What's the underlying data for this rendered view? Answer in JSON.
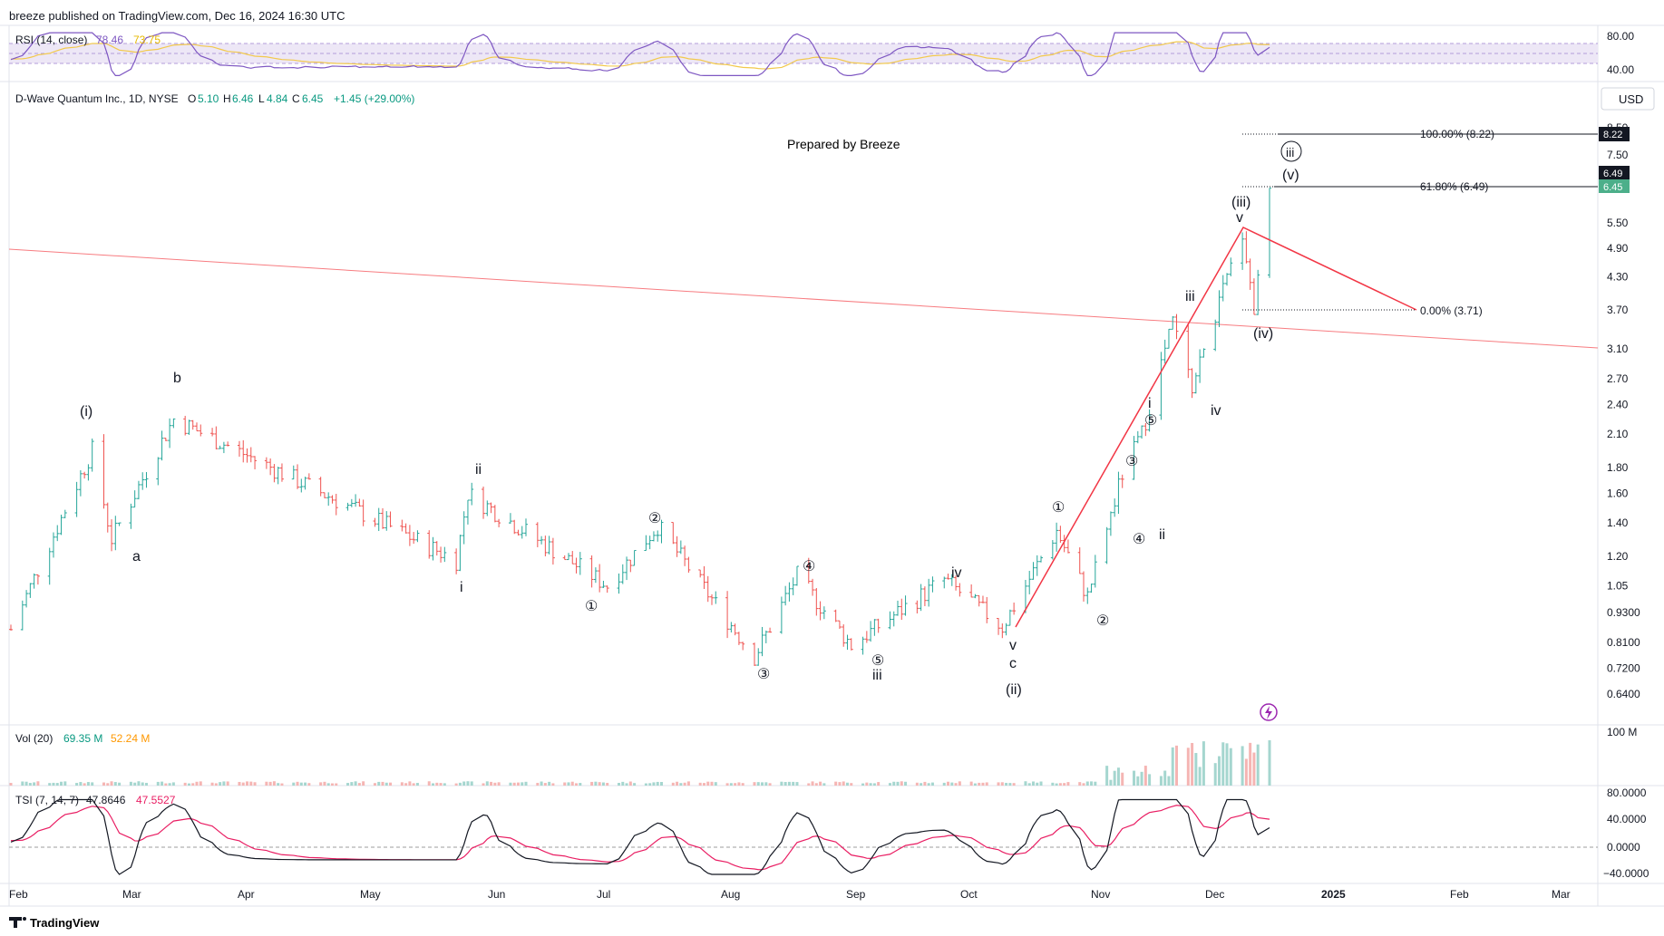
{
  "header": {
    "published": "breeze published on TradingView.com, Dec 16, 2024 16:30 UTC"
  },
  "rsi": {
    "label": "RSI (14, close)",
    "value1": "78.46",
    "value2": "73.75",
    "axis": [
      "80.00",
      "40.00"
    ],
    "color_line": "#7e57c2",
    "color_ma": "#f2c94c"
  },
  "main": {
    "symbol": "D-Wave Quantum Inc., 1D, NYSE",
    "o_label": "O",
    "o": "5.10",
    "h_label": "H",
    "h": "6.46",
    "l_label": "L",
    "l": "4.84",
    "c_label": "C",
    "c": "6.45",
    "change": "+1.45 (+29.00%)",
    "currency": "USD",
    "prepared": "Prepared by Breeze",
    "fib_100": "100.00% (8.22)",
    "fib_618": "61.80% (6.49)",
    "fib_0": "0.00% (3.71)",
    "badge_822": "8.22",
    "badge_649": "6.49",
    "badge_645": "6.45",
    "price_ticks": [
      "8.50",
      "7.50",
      "6.50",
      "5.50",
      "4.90",
      "4.30",
      "3.70",
      "3.10",
      "2.70",
      "2.40",
      "2.10",
      "1.80",
      "1.60",
      "1.40",
      "1.20",
      "1.05",
      "0.9300",
      "0.8100",
      "0.7200",
      "0.6400"
    ],
    "wave_labels": {
      "w_i_paren": "(i)",
      "w_b": "b",
      "w_a": "a",
      "w_ii_1": "ii",
      "w_i_1": "i",
      "w_c1_1": "①",
      "w_c2_1": "②",
      "w_c3_1": "③",
      "w_c4_1": "④",
      "w_c5_1": "⑤",
      "w_iii_1": "iii",
      "w_iv_1": "iv",
      "w_v_1": "v",
      "w_c_1": "c",
      "w_ii_paren": "(ii)",
      "w_c1_2": "①",
      "w_c2_2": "②",
      "w_c3_2": "③",
      "w_c4_2": "④",
      "w_c5_2": "⑤",
      "w_i_2": "i",
      "w_ii_2": "ii",
      "w_iii_2": "iii",
      "w_iv_2": "iv",
      "w_iii_paren": "(iii)",
      "w_v_2": "v",
      "w_iv_paren": "(iv)",
      "w_v_paren": "(v)",
      "w_iii_circle": "iii"
    }
  },
  "volume": {
    "label": "Vol (20)",
    "v1": "69.35 M",
    "v2": "52.24 M",
    "axis": "100 M"
  },
  "tsi": {
    "label": "TSI (7, 14, 7)",
    "v1": "47.8646",
    "v2": "47.5527",
    "axis": [
      "80.0000",
      "40.0000",
      "0.0000",
      "−40.0000"
    ]
  },
  "time_axis": [
    "Feb",
    "Mar",
    "Apr",
    "May",
    "Jun",
    "Jul",
    "Aug",
    "Sep",
    "Oct",
    "Nov",
    "Dec",
    "2025",
    "Feb",
    "Mar"
  ],
  "footer": {
    "brand": "TradingView"
  },
  "colors": {
    "up": "#26a69a",
    "down": "#ef5350",
    "trend": "#f23645",
    "tsi": "#131722",
    "tsi_signal": "#e91e63",
    "vol_ma": "#ff9800"
  },
  "chart_data": {
    "type": "candlestick",
    "title": "D-Wave Quantum Inc., 1D, NYSE",
    "x_range": [
      "2024-01-26",
      "2024-12-16"
    ],
    "y_scale": "log",
    "ylim": [
      0.6,
      9.0
    ],
    "key_points": [
      {
        "date": "2024-01-26",
        "close": 0.86
      },
      {
        "date": "2024-02-16",
        "close": 1.95
      },
      {
        "date": "2024-02-21",
        "close": 1.3
      },
      {
        "date": "2024-03-08",
        "close": 2.25
      },
      {
        "date": "2024-05-20",
        "close": 1.18
      },
      {
        "date": "2024-05-23",
        "close": 1.6
      },
      {
        "date": "2024-06-28",
        "close": 1.05
      },
      {
        "date": "2024-07-11",
        "close": 1.38
      },
      {
        "date": "2024-08-05",
        "close": 0.76
      },
      {
        "date": "2024-08-16",
        "close": 1.1
      },
      {
        "date": "2024-08-30",
        "close": 0.8
      },
      {
        "date": "2024-09-23",
        "close": 1.08
      },
      {
        "date": "2024-10-08",
        "close": 0.87
      },
      {
        "date": "2024-10-22",
        "close": 1.35
      },
      {
        "date": "2024-10-30",
        "close": 1.0
      },
      {
        "date": "2024-11-08",
        "close": 1.75
      },
      {
        "date": "2024-11-13",
        "close": 2.1
      },
      {
        "date": "2024-11-21",
        "close": 3.5
      },
      {
        "date": "2024-11-26",
        "close": 2.6
      },
      {
        "date": "2024-12-09",
        "close": 5.3
      },
      {
        "date": "2024-12-12",
        "close": 3.71
      },
      {
        "date": "2024-12-16",
        "close": 6.45
      }
    ],
    "fibonacci": [
      {
        "level": "100.00%",
        "price": 8.22
      },
      {
        "level": "61.80%",
        "price": 6.49
      },
      {
        "level": "0.00%",
        "price": 3.71
      }
    ]
  }
}
